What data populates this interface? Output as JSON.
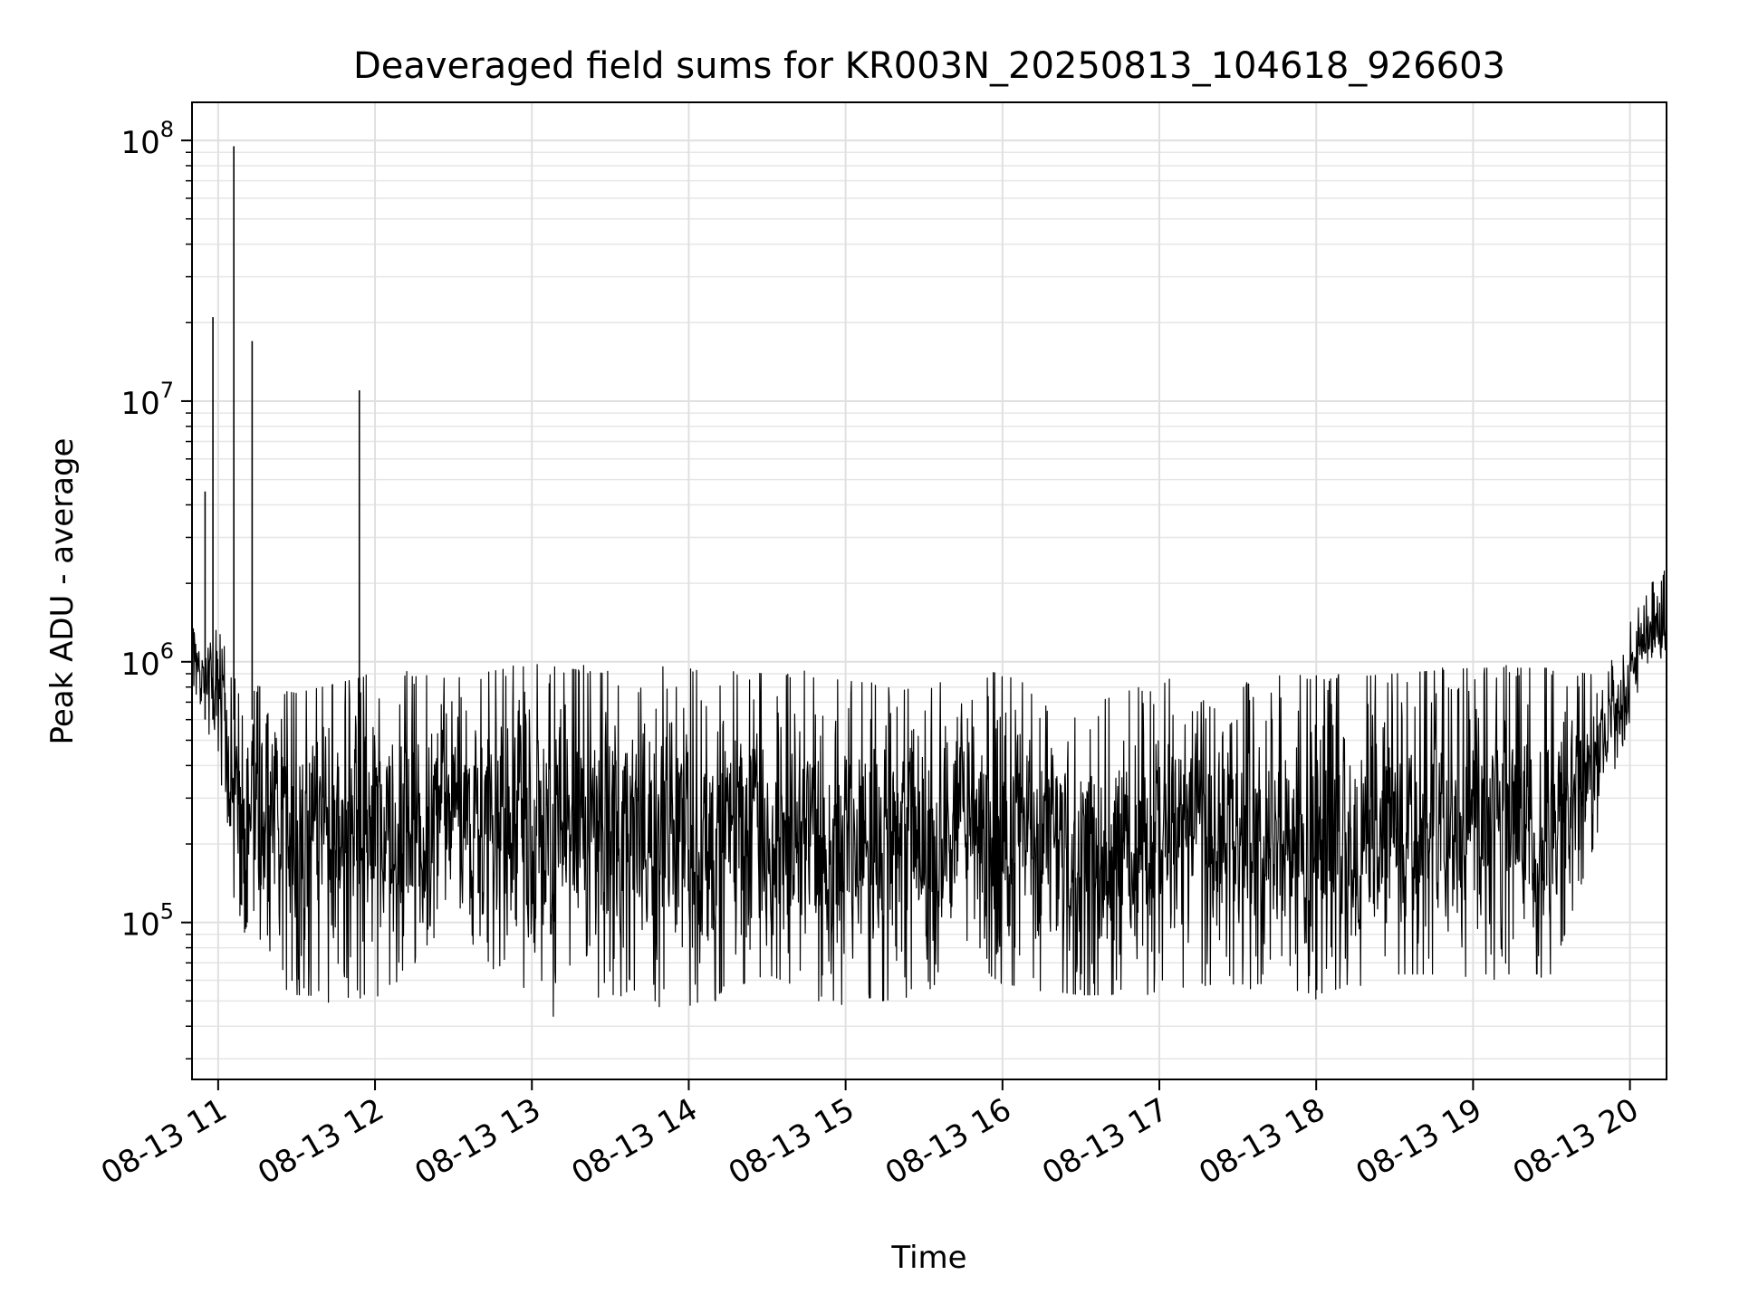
{
  "chart_data": {
    "type": "line",
    "title": "Deaveraged field sums for KR003N_20250813_104618_926603",
    "xlabel": "Time",
    "ylabel": "Peak ADU - average",
    "yscale": "log",
    "ylim": [
      25000,
      140000000
    ],
    "xlim": [
      "2025-08-13 10:50",
      "2025-08-13 20:14"
    ],
    "grid": true,
    "series_color": "#000000",
    "x_ticks": [
      {
        "t": "2025-08-13 11:00",
        "label": "08-13 11"
      },
      {
        "t": "2025-08-13 12:00",
        "label": "08-13 12"
      },
      {
        "t": "2025-08-13 13:00",
        "label": "08-13 13"
      },
      {
        "t": "2025-08-13 14:00",
        "label": "08-13 14"
      },
      {
        "t": "2025-08-13 15:00",
        "label": "08-13 15"
      },
      {
        "t": "2025-08-13 16:00",
        "label": "08-13 16"
      },
      {
        "t": "2025-08-13 17:00",
        "label": "08-13 17"
      },
      {
        "t": "2025-08-13 18:00",
        "label": "08-13 18"
      },
      {
        "t": "2025-08-13 19:00",
        "label": "08-13 19"
      },
      {
        "t": "2025-08-13 20:00",
        "label": "08-13 20"
      }
    ],
    "y_ticks": [
      {
        "value": 100000,
        "base": "10",
        "exp": "5"
      },
      {
        "value": 1000000,
        "base": "10",
        "exp": "6"
      },
      {
        "value": 10000000,
        "base": "10",
        "exp": "7"
      },
      {
        "value": 100000000,
        "base": "10",
        "exp": "8"
      }
    ],
    "envelope": [
      {
        "t": "2025-08-13 10:50",
        "low": 700000,
        "high": 1600000
      },
      {
        "t": "2025-08-13 11:00",
        "low": 450000,
        "high": 1500000
      },
      {
        "t": "2025-08-13 11:05",
        "low": 130000,
        "high": 900000
      },
      {
        "t": "2025-08-13 11:15",
        "low": 60000,
        "high": 850000
      },
      {
        "t": "2025-08-13 11:30",
        "low": 50000,
        "high": 800000
      },
      {
        "t": "2025-08-13 12:00",
        "low": 48000,
        "high": 950000
      },
      {
        "t": "2025-08-13 12:30",
        "low": 100000,
        "high": 900000
      },
      {
        "t": "2025-08-13 13:00",
        "low": 38000,
        "high": 1050000
      },
      {
        "t": "2025-08-13 13:30",
        "low": 50000,
        "high": 950000
      },
      {
        "t": "2025-08-13 14:00",
        "low": 45000,
        "high": 1000000
      },
      {
        "t": "2025-08-13 14:30",
        "low": 60000,
        "high": 950000
      },
      {
        "t": "2025-08-13 15:00",
        "low": 45000,
        "high": 900000
      },
      {
        "t": "2025-08-13 15:30",
        "low": 50000,
        "high": 800000
      },
      {
        "t": "2025-08-13 15:45",
        "low": 70000,
        "high": 1000000
      },
      {
        "t": "2025-08-13 16:00",
        "low": 55000,
        "high": 950000
      },
      {
        "t": "2025-08-13 16:30",
        "low": 50000,
        "high": 700000
      },
      {
        "t": "2025-08-13 17:00",
        "low": 50000,
        "high": 900000
      },
      {
        "t": "2025-08-13 17:20",
        "low": 55000,
        "high": 700000
      },
      {
        "t": "2025-08-13 17:40",
        "low": 55000,
        "high": 950000
      },
      {
        "t": "2025-08-13 18:00",
        "low": 50000,
        "high": 900000
      },
      {
        "t": "2025-08-13 18:30",
        "low": 60000,
        "high": 950000
      },
      {
        "t": "2025-08-13 19:00",
        "low": 60000,
        "high": 1000000
      },
      {
        "t": "2025-08-13 19:30",
        "low": 60000,
        "high": 1000000
      },
      {
        "t": "2025-08-13 19:50",
        "low": 250000,
        "high": 900000
      },
      {
        "t": "2025-08-13 20:05",
        "low": 900000,
        "high": 1800000
      },
      {
        "t": "2025-08-13 20:14",
        "low": 800000,
        "high": 2500000
      }
    ],
    "spikes": [
      {
        "t": "2025-08-13 10:55",
        "value": 4500000
      },
      {
        "t": "2025-08-13 10:58",
        "value": 21000000
      },
      {
        "t": "2025-08-13 11:06",
        "value": 95000000
      },
      {
        "t": "2025-08-13 11:13",
        "value": 17000000
      },
      {
        "t": "2025-08-13 11:54",
        "value": 11000000
      }
    ]
  }
}
